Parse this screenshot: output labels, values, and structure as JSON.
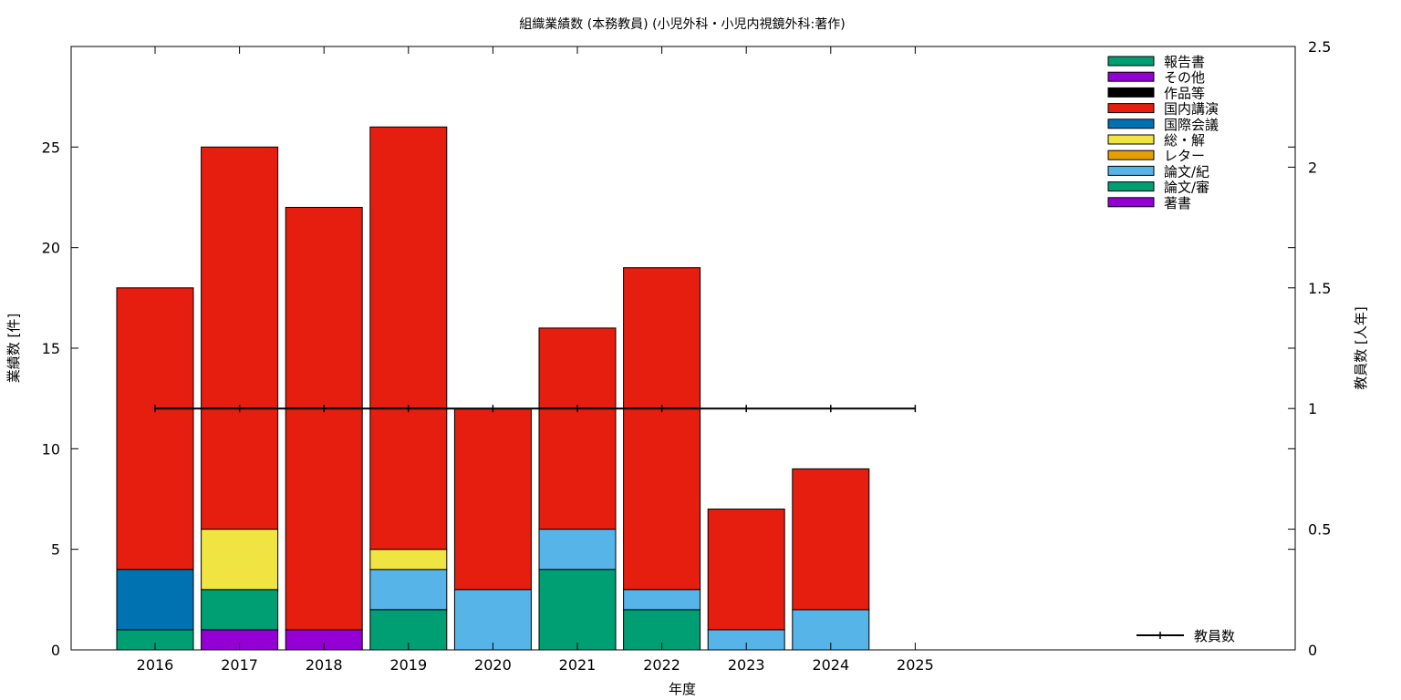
{
  "chart_data": {
    "type": "bar",
    "stacked": true,
    "title": "組織業績数 (本務教員) (小児外科・小児内視鏡外科:著作)",
    "xlabel": "年度",
    "ylabel": "業績数 [件]",
    "y2label": "教員数 [人年]",
    "categories": [
      "2016",
      "2017",
      "2018",
      "2019",
      "2020",
      "2021",
      "2022",
      "2023",
      "2024",
      "2025"
    ],
    "ylim": [
      0,
      30
    ],
    "yticks": [
      0,
      5,
      10,
      15,
      20,
      25
    ],
    "y2lim": [
      0,
      2.5
    ],
    "y2ticks": [
      0,
      0.5,
      1,
      1.5,
      2,
      2.5
    ],
    "y2ticklabels": [
      "0",
      "0.5",
      "1",
      "1.5",
      "2",
      "2.5"
    ],
    "grid": false,
    "legend_position": "top-right",
    "series": [
      {
        "name": "著書",
        "color": "#9400d3",
        "values": [
          0,
          1,
          1,
          0,
          0,
          0,
          0,
          0,
          0,
          0
        ]
      },
      {
        "name": "論文/審",
        "color": "#009e73",
        "values": [
          1,
          2,
          0,
          2,
          0,
          4,
          2,
          0,
          0,
          0
        ]
      },
      {
        "name": "論文/紀",
        "color": "#56b4e9",
        "values": [
          0,
          0,
          0,
          2,
          3,
          2,
          1,
          1,
          2,
          0
        ]
      },
      {
        "name": "レター",
        "color": "#e69f00",
        "values": [
          0,
          0,
          0,
          0,
          0,
          0,
          0,
          0,
          0,
          0
        ]
      },
      {
        "name": "総・解",
        "color": "#f0e442",
        "values": [
          0,
          3,
          0,
          1,
          0,
          0,
          0,
          0,
          0,
          0
        ]
      },
      {
        "name": "国際会議",
        "color": "#0072b2",
        "values": [
          3,
          0,
          0,
          0,
          0,
          0,
          0,
          0,
          0,
          0
        ]
      },
      {
        "name": "国内講演",
        "color": "#e51e10",
        "values": [
          14,
          19,
          21,
          21,
          9,
          10,
          16,
          6,
          7,
          0
        ]
      },
      {
        "name": "作品等",
        "color": "#000000",
        "values": [
          0,
          0,
          0,
          0,
          0,
          0,
          0,
          0,
          0,
          0
        ]
      },
      {
        "name": "その他",
        "color": "#9400d3",
        "values": [
          0,
          0,
          0,
          0,
          0,
          0,
          0,
          0,
          0,
          0
        ]
      },
      {
        "name": "報告書",
        "color": "#009e73",
        "values": [
          0,
          0,
          0,
          0,
          0,
          0,
          0,
          0,
          0,
          0
        ]
      }
    ],
    "stack_order": [
      "著書",
      "論文/審",
      "論文/紀",
      "レター",
      "総・解",
      "国際会議",
      "国内講演",
      "作品等",
      "その他",
      "報告書"
    ],
    "legend_order": [
      "報告書",
      "その他",
      "作品等",
      "国内講演",
      "国際会議",
      "総・解",
      "レター",
      "論文/紀",
      "論文/審",
      "著書"
    ],
    "line_series": {
      "name": "教員数",
      "axis": "y2",
      "color": "#000000",
      "values": [
        1,
        1,
        1,
        1,
        1,
        1,
        1,
        1,
        1,
        1
      ]
    }
  }
}
